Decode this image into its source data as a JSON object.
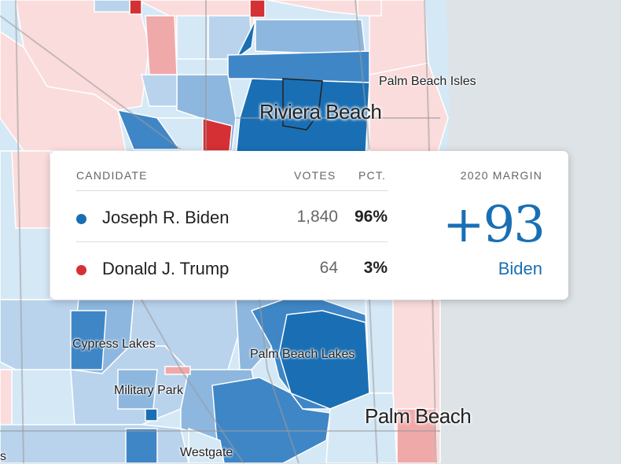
{
  "map": {
    "labels": {
      "palm_beach_isles": "Palm Beach Isles",
      "riviera_beach": "Riviera Beach",
      "cypress_lakes": "Cypress Lakes",
      "palm_beach_lakes": "Palm Beach Lakes",
      "military_park": "Military Park",
      "palm_beach": "Palm Beach",
      "westgate": "Westgate",
      "edge_fragment": "s"
    },
    "colors": {
      "water": "#dde3e6",
      "dem_strong": "#1a6fb4",
      "dem_mid": "#3f86c6",
      "dem_light": "#8db7de",
      "dem_pale": "#b9d3ec",
      "dem_faint": "#d5e8f6",
      "rep_faint": "#fbdcdc",
      "rep_light": "#f0a9a9",
      "rep_strong": "#d53034"
    }
  },
  "results": {
    "headers": {
      "candidate": "CANDIDATE",
      "votes": "VOTES",
      "pct": "PCT.",
      "margin": "2020 MARGIN"
    },
    "candidates": [
      {
        "name": "Joseph R. Biden",
        "votes": "1,840",
        "pct": "96%",
        "color": "#1a6fb4"
      },
      {
        "name": "Donald J. Trump",
        "votes": "64",
        "pct": "3%",
        "color": "#d53034"
      }
    ],
    "margin": {
      "value": "+93",
      "winner": "Biden"
    }
  }
}
